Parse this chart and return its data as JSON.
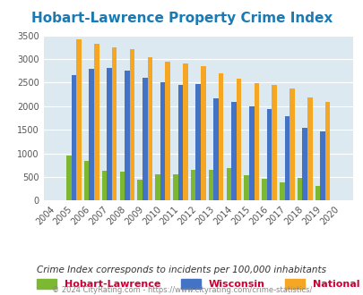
{
  "title": "Hobart-Lawrence Property Crime Index",
  "years": [
    2004,
    2005,
    2006,
    2007,
    2008,
    2009,
    2010,
    2011,
    2012,
    2013,
    2014,
    2015,
    2016,
    2017,
    2018,
    2019,
    2020
  ],
  "hobart": [
    0,
    960,
    850,
    635,
    605,
    450,
    555,
    555,
    660,
    655,
    685,
    530,
    470,
    380,
    490,
    305,
    0
  ],
  "wisconsin": [
    0,
    2660,
    2800,
    2820,
    2750,
    2600,
    2500,
    2460,
    2470,
    2170,
    2085,
    1990,
    1930,
    1790,
    1540,
    1460,
    0
  ],
  "national": [
    0,
    3410,
    3330,
    3250,
    3200,
    3030,
    2940,
    2900,
    2840,
    2700,
    2580,
    2480,
    2460,
    2370,
    2190,
    2100,
    0
  ],
  "hobart_color": "#7db832",
  "wisconsin_color": "#4472c4",
  "national_color": "#f5a623",
  "bg_color": "#dce9f0",
  "title_color": "#1a7ab5",
  "legend_color": "#cc0033",
  "subtitle": "Crime Index corresponds to incidents per 100,000 inhabitants",
  "footer": "© 2024 CityRating.com - https://www.cityrating.com/crime-statistics/",
  "ylim": [
    0,
    3500
  ],
  "yticks": [
    0,
    500,
    1000,
    1500,
    2000,
    2500,
    3000,
    3500
  ]
}
